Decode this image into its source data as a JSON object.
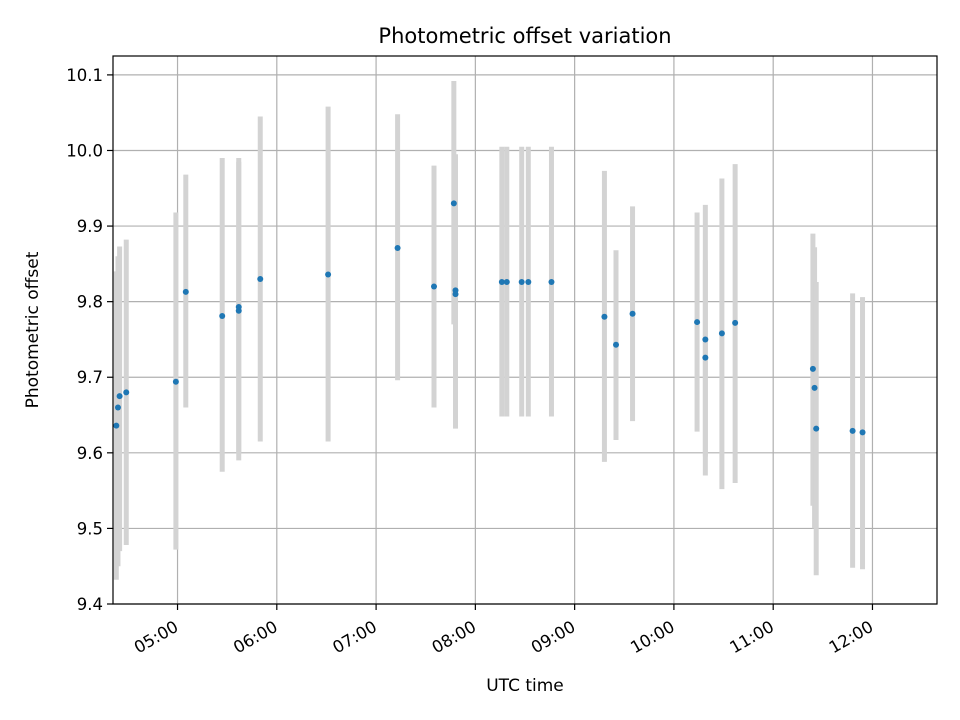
{
  "chart_data": {
    "type": "scatter",
    "title": "Photometric offset variation",
    "xlabel": "UTC time",
    "ylabel": "Photometric offset",
    "x_ticks": [
      "05:00",
      "06:00",
      "07:00",
      "08:00",
      "09:00",
      "10:00",
      "11:00",
      "12:00"
    ],
    "y_ticks": [
      "9.4",
      "9.5",
      "9.6",
      "9.7",
      "9.8",
      "9.9",
      "10.0",
      "10.1"
    ],
    "xlim": [
      "04:21",
      "12:39"
    ],
    "ylim": [
      9.4,
      10.125
    ],
    "grid": true,
    "colors": {
      "point": "#1f77b4",
      "errorbar": "#d3d3d3",
      "grid": "#b0b0b0"
    },
    "points": [
      {
        "t": "04:23",
        "y": 9.636,
        "lo": 9.432,
        "hi": 9.84
      },
      {
        "t": "04:24",
        "y": 9.66,
        "lo": 9.45,
        "hi": 9.86
      },
      {
        "t": "04:25",
        "y": 9.675,
        "lo": 9.47,
        "hi": 9.873
      },
      {
        "t": "04:29",
        "y": 9.68,
        "lo": 9.478,
        "hi": 9.882
      },
      {
        "t": "04:59",
        "y": 9.694,
        "lo": 9.472,
        "hi": 9.918
      },
      {
        "t": "05:05",
        "y": 9.813,
        "lo": 9.66,
        "hi": 9.968
      },
      {
        "t": "05:27",
        "y": 9.781,
        "lo": 9.575,
        "hi": 9.99
      },
      {
        "t": "05:37",
        "y": 9.788,
        "lo": 9.59,
        "hi": 9.99
      },
      {
        "t": "05:37",
        "y": 9.793,
        "lo": 9.6,
        "hi": 9.985
      },
      {
        "t": "05:50",
        "y": 9.83,
        "lo": 9.615,
        "hi": 10.045
      },
      {
        "t": "06:31",
        "y": 9.836,
        "lo": 9.615,
        "hi": 10.058
      },
      {
        "t": "07:13",
        "y": 9.871,
        "lo": 9.696,
        "hi": 10.048
      },
      {
        "t": "07:35",
        "y": 9.82,
        "lo": 9.66,
        "hi": 9.98
      },
      {
        "t": "07:47",
        "y": 9.93,
        "lo": 9.77,
        "hi": 10.092
      },
      {
        "t": "07:48",
        "y": 9.81,
        "lo": 9.632,
        "hi": 9.99
      },
      {
        "t": "07:48",
        "y": 9.815,
        "lo": 9.64,
        "hi": 9.995
      },
      {
        "t": "08:16",
        "y": 9.826,
        "lo": 9.648,
        "hi": 10.005
      },
      {
        "t": "08:19",
        "y": 9.826,
        "lo": 9.648,
        "hi": 10.005
      },
      {
        "t": "08:28",
        "y": 9.826,
        "lo": 9.648,
        "hi": 10.005
      },
      {
        "t": "08:32",
        "y": 9.826,
        "lo": 9.648,
        "hi": 10.005
      },
      {
        "t": "08:46",
        "y": 9.826,
        "lo": 9.648,
        "hi": 10.005
      },
      {
        "t": "09:18",
        "y": 9.78,
        "lo": 9.588,
        "hi": 9.973
      },
      {
        "t": "09:25",
        "y": 9.743,
        "lo": 9.617,
        "hi": 9.868
      },
      {
        "t": "09:35",
        "y": 9.784,
        "lo": 9.642,
        "hi": 9.926
      },
      {
        "t": "10:14",
        "y": 9.773,
        "lo": 9.628,
        "hi": 9.918
      },
      {
        "t": "10:19",
        "y": 9.726,
        "lo": 9.595,
        "hi": 9.855
      },
      {
        "t": "10:19",
        "y": 9.75,
        "lo": 9.57,
        "hi": 9.928
      },
      {
        "t": "10:29",
        "y": 9.758,
        "lo": 9.552,
        "hi": 9.963
      },
      {
        "t": "10:37",
        "y": 9.772,
        "lo": 9.56,
        "hi": 9.982
      },
      {
        "t": "11:24",
        "y": 9.711,
        "lo": 9.53,
        "hi": 9.89
      },
      {
        "t": "11:25",
        "y": 9.686,
        "lo": 9.5,
        "hi": 9.872
      },
      {
        "t": "11:26",
        "y": 9.632,
        "lo": 9.438,
        "hi": 9.826
      },
      {
        "t": "11:48",
        "y": 9.629,
        "lo": 9.448,
        "hi": 9.811
      },
      {
        "t": "11:54",
        "y": 9.627,
        "lo": 9.446,
        "hi": 9.806
      }
    ]
  }
}
